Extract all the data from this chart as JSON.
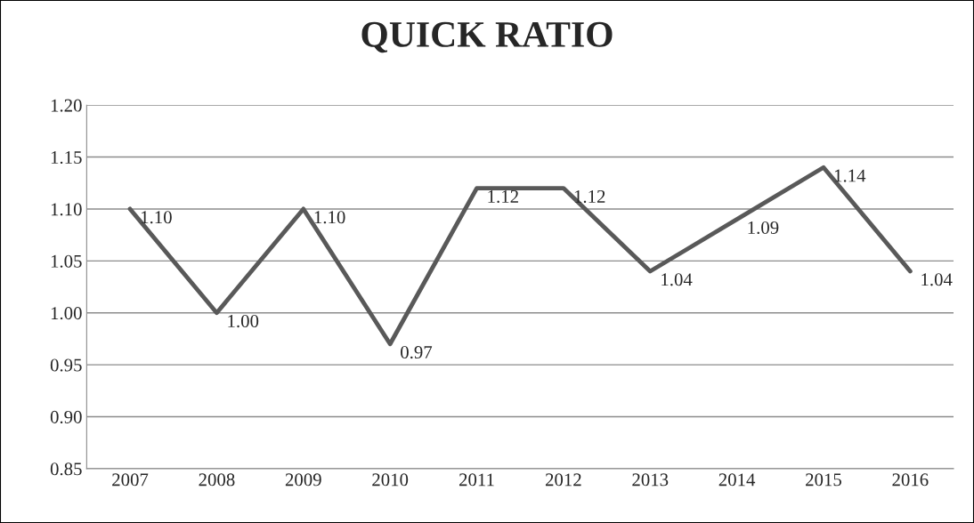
{
  "chart_data": {
    "type": "line",
    "title": "QUICK RATIO",
    "categories": [
      "2007",
      "2008",
      "2009",
      "2010",
      "2011",
      "2012",
      "2013",
      "2014",
      "2015",
      "2016"
    ],
    "series": [
      {
        "color": "#595959",
        "values": [
          1.1,
          1.0,
          1.1,
          0.97,
          1.12,
          1.12,
          1.04,
          1.09,
          1.14,
          1.04
        ],
        "value_labels": [
          "1.10",
          "1.00",
          "1.10",
          "0.97",
          "1.12",
          "1.12",
          "1.04",
          "1.09",
          "1.14",
          "1.04"
        ]
      }
    ],
    "ylim": [
      0.85,
      1.2
    ],
    "yticks": [
      {
        "value": 0.85,
        "label": "0.85"
      },
      {
        "value": 0.9,
        "label": "0.90"
      },
      {
        "value": 0.95,
        "label": "0.95"
      },
      {
        "value": 1.0,
        "label": "1.00"
      },
      {
        "value": 1.05,
        "label": "1.05"
      },
      {
        "value": 1.1,
        "label": "1.10"
      },
      {
        "value": 1.15,
        "label": "1.15"
      },
      {
        "value": 1.2,
        "label": "1.20"
      }
    ],
    "grid": "y",
    "legend": false,
    "marker": "none",
    "line_style": "solid"
  }
}
